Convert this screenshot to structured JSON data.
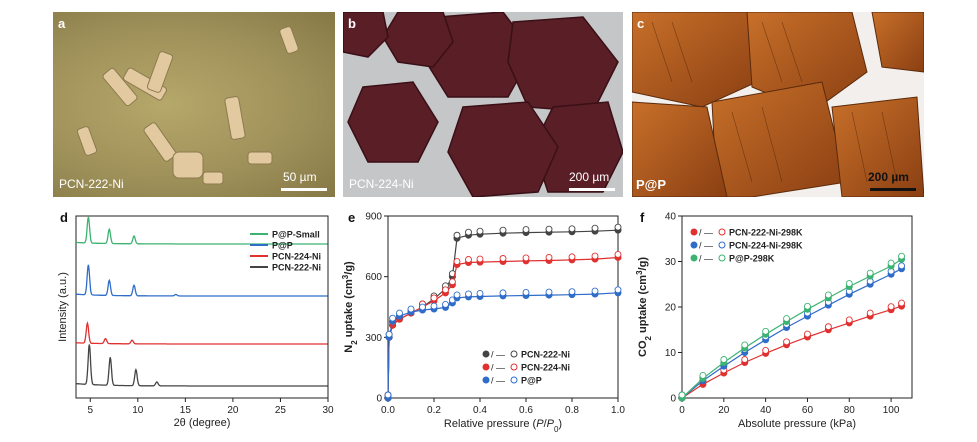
{
  "photos": {
    "a": {
      "label": "a",
      "caption": "PCN-222-Ni",
      "scale": "50 µm"
    },
    "b": {
      "label": "b",
      "caption": "PCN-224-Ni",
      "scale": "200 µm"
    },
    "c": {
      "label": "c",
      "caption": "P@P",
      "scale": "200 µm"
    }
  },
  "chart_data": [
    {
      "panel": "d",
      "type": "line",
      "xlabel": "2θ (degree)",
      "ylabel": "Intensity (a.u.)",
      "xlim": [
        3.5,
        30
      ],
      "xticks": [
        5,
        10,
        15,
        20,
        25,
        30
      ],
      "legend_position": "top-right",
      "series": [
        {
          "name": "P@P-Small",
          "color": "#3cb371",
          "peaks": [
            [
              4.8,
              1.0
            ],
            [
              7.0,
              0.55
            ],
            [
              9.6,
              0.3
            ]
          ]
        },
        {
          "name": "P@P",
          "color": "#2f6dc9",
          "peaks": [
            [
              4.8,
              1.0
            ],
            [
              7.0,
              0.5
            ],
            [
              9.6,
              0.35
            ],
            [
              14.0,
              0.05
            ]
          ]
        },
        {
          "name": "PCN-224-Ni",
          "color": "#e03131",
          "peaks": [
            [
              4.7,
              1.0
            ],
            [
              6.6,
              0.25
            ],
            [
              9.4,
              0.18
            ]
          ]
        },
        {
          "name": "PCN-222-Ni",
          "color": "#444444",
          "peaks": [
            [
              4.9,
              1.0
            ],
            [
              7.1,
              0.7
            ],
            [
              9.8,
              0.4
            ],
            [
              12.0,
              0.1
            ]
          ]
        }
      ]
    },
    {
      "panel": "e",
      "type": "line",
      "xlabel": "Relative pressure (P/P0)",
      "ylabel": "N2 uptake (cm3/g)",
      "xlim": [
        0,
        1.0
      ],
      "ylim": [
        0,
        900
      ],
      "xticks": [
        0.0,
        0.2,
        0.4,
        0.6,
        0.8,
        1.0
      ],
      "yticks": [
        0,
        300,
        600,
        900
      ],
      "legend_position": "bottom-right",
      "series": [
        {
          "name": "PCN-222-Ni",
          "color": "#444444",
          "x": [
            0.0,
            0.005,
            0.02,
            0.05,
            0.1,
            0.15,
            0.2,
            0.25,
            0.28,
            0.3,
            0.35,
            0.4,
            0.5,
            0.6,
            0.7,
            0.8,
            0.9,
            1.0
          ],
          "y": [
            0,
            300,
            360,
            390,
            420,
            450,
            490,
            540,
            600,
            790,
            805,
            810,
            815,
            818,
            820,
            822,
            825,
            830
          ]
        },
        {
          "name": "PCN-224-Ni",
          "color": "#e03131",
          "x": [
            0.0,
            0.005,
            0.02,
            0.05,
            0.1,
            0.15,
            0.2,
            0.25,
            0.28,
            0.3,
            0.35,
            0.4,
            0.5,
            0.6,
            0.7,
            0.8,
            0.9,
            1.0
          ],
          "y": [
            0,
            300,
            360,
            390,
            420,
            450,
            480,
            520,
            560,
            660,
            670,
            672,
            675,
            678,
            680,
            683,
            687,
            695
          ]
        },
        {
          "name": "P@P",
          "color": "#2f6dc9",
          "x": [
            0.0,
            0.005,
            0.02,
            0.05,
            0.1,
            0.15,
            0.2,
            0.25,
            0.28,
            0.3,
            0.35,
            0.4,
            0.5,
            0.6,
            0.7,
            0.8,
            0.9,
            1.0
          ],
          "y": [
            0,
            300,
            380,
            405,
            425,
            435,
            440,
            448,
            470,
            495,
            500,
            502,
            505,
            507,
            509,
            511,
            514,
            520
          ]
        }
      ]
    },
    {
      "panel": "f",
      "type": "line",
      "xlabel": "Absolute pressure (kPa)",
      "ylabel": "CO2 uptake (cm3/g)",
      "xlim": [
        0,
        110
      ],
      "ylim": [
        0,
        40
      ],
      "xticks": [
        0,
        20,
        40,
        60,
        80,
        100
      ],
      "yticks": [
        0,
        10,
        20,
        30,
        40
      ],
      "legend_position": "top-left",
      "series": [
        {
          "name": "PCN-222-Ni-298K",
          "color": "#e03131",
          "x": [
            0,
            10,
            20,
            30,
            40,
            50,
            60,
            70,
            80,
            90,
            100,
            105
          ],
          "y": [
            0,
            3.0,
            5.5,
            7.8,
            9.8,
            11.7,
            13.4,
            15.0,
            16.5,
            18.0,
            19.4,
            20.2
          ]
        },
        {
          "name": "PCN-224-Ni-298K",
          "color": "#2f6dc9",
          "x": [
            0,
            10,
            20,
            30,
            40,
            50,
            60,
            70,
            80,
            90,
            100,
            105
          ],
          "y": [
            0,
            3.8,
            7.0,
            10.0,
            12.8,
            15.5,
            18.0,
            20.4,
            22.8,
            25.0,
            27.2,
            28.4
          ]
        },
        {
          "name": "P@P-298K",
          "color": "#3cb371",
          "x": [
            0,
            10,
            20,
            30,
            40,
            50,
            60,
            70,
            80,
            90,
            100,
            105
          ],
          "y": [
            0,
            4.3,
            7.8,
            11.0,
            14.0,
            16.8,
            19.5,
            22.0,
            24.5,
            26.8,
            29.0,
            30.5
          ]
        }
      ]
    }
  ],
  "panel_labels": {
    "d": "d",
    "e": "e",
    "f": "f"
  },
  "axis_text": {
    "d_ylabel": "Intensity (a.u.)",
    "d_xlabel": "2θ (degree)",
    "e_ylabel_main": "N",
    "e_ylabel_sub": "2",
    "e_ylabel_rest": " uptake (cm",
    "e_ylabel_sup": "3",
    "e_ylabel_end": "/g)",
    "e_xlabel_pre": "Relative pressure (",
    "e_xlabel_P": "P",
    "e_xlabel_slash": "/",
    "e_xlabel_P0": "P",
    "e_xlabel_0": "0",
    "e_xlabel_end": ")",
    "f_ylabel_main": "CO",
    "f_ylabel_sub": "2",
    "f_ylabel_rest": " uptake (cm",
    "f_ylabel_sup": "3",
    "f_ylabel_end": "/g)",
    "f_xlabel": "Absolute pressure (kPa)",
    "legend_sep": "/ —"
  }
}
